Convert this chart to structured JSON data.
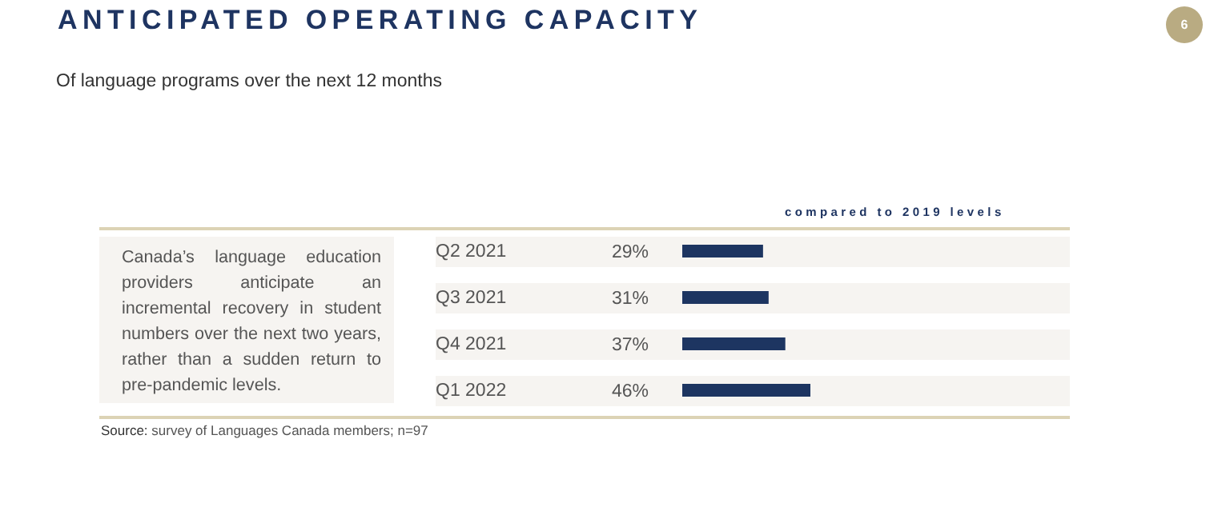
{
  "chart_data": {
    "type": "bar",
    "title": "ANTICIPATED OPERATING CAPACITY",
    "subtitle": "Of language programs over the next 12 months",
    "orientation": "horizontal",
    "categories": [
      "Q2 2021",
      "Q3 2021",
      "Q4 2021",
      "Q1 2022"
    ],
    "values": [
      29,
      31,
      37,
      46
    ],
    "value_labels": [
      "29%",
      "31%",
      "37%",
      "46%"
    ],
    "color": "#1d3561",
    "tick_labels": "y",
    "annotations": [
      "Canada’s language education providers anticipate an incremental recovery in student numbers over the next two years, rather than a sudden return to pre-pandemic levels.",
      "compared to 2019 levels",
      "Source: survey of Languages Canada members; n=97",
      "6"
    ]
  }
}
